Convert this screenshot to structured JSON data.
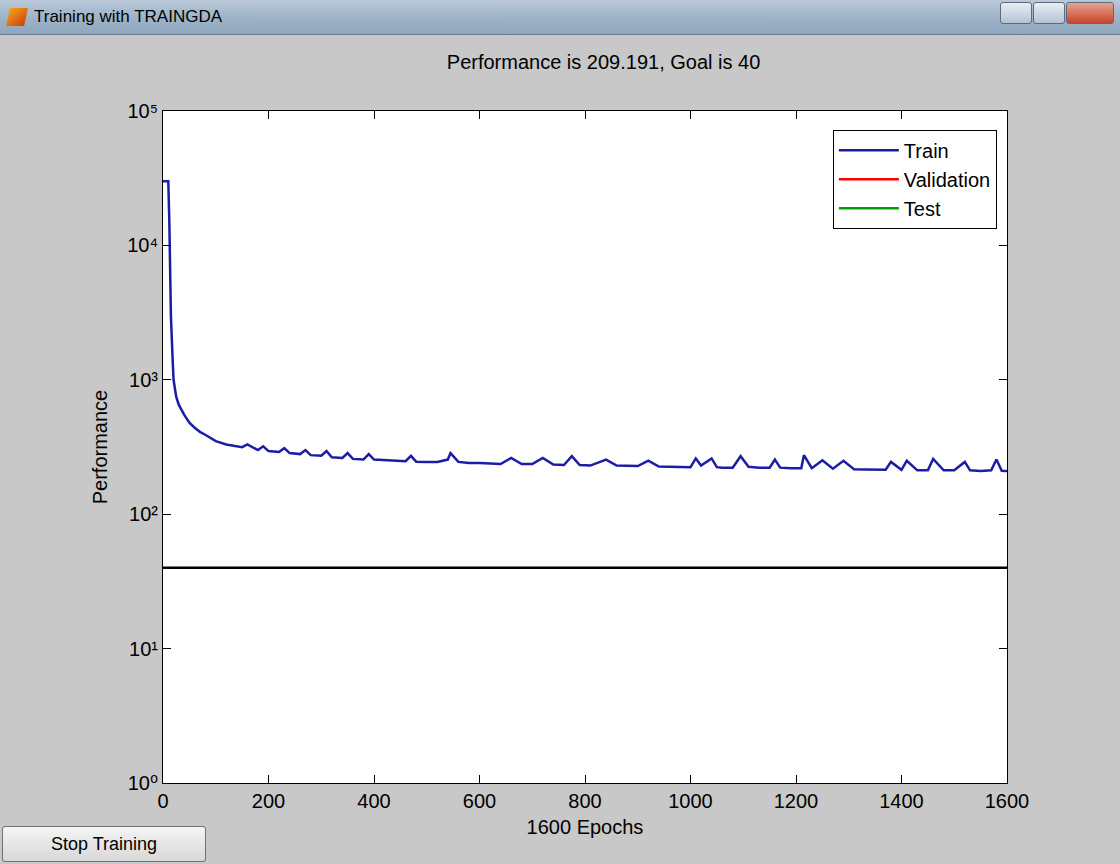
{
  "chart_data": {
    "type": "line",
    "title": "Performance is 209.191, Goal is 40",
    "x_label": "1600 Epochs",
    "y_label": "Performance",
    "log": "y",
    "grid": false,
    "legend": "upper right",
    "goal": 40,
    "xlim": [
      0,
      1600
    ],
    "xticks": [
      0,
      200,
      400,
      600,
      800,
      1000,
      1200,
      1400,
      1600
    ],
    "ylim": [
      1,
      100000
    ],
    "yticks": [
      {
        "value": 1,
        "label": "10⁰"
      },
      {
        "value": 10,
        "label": "10¹"
      },
      {
        "value": 100,
        "label": "10²"
      },
      {
        "value": 1000,
        "label": "10³"
      },
      {
        "value": 10000,
        "label": "10⁴"
      },
      {
        "value": 100000,
        "label": "10⁵"
      }
    ],
    "x": [
      0,
      5,
      10,
      12,
      15,
      18,
      20,
      25,
      30,
      40,
      50,
      60,
      70,
      80,
      90,
      100,
      120,
      140,
      150,
      160,
      180,
      190,
      200,
      220,
      230,
      240,
      260,
      270,
      280,
      300,
      310,
      320,
      340,
      350,
      360,
      380,
      390,
      400,
      420,
      440,
      460,
      470,
      480,
      500,
      520,
      540,
      545,
      560,
      580,
      600,
      620,
      640,
      660,
      680,
      700,
      720,
      740,
      760,
      775,
      790,
      810,
      840,
      860,
      880,
      900,
      920,
      940,
      960,
      980,
      1000,
      1010,
      1020,
      1040,
      1050,
      1060,
      1080,
      1095,
      1110,
      1130,
      1150,
      1160,
      1170,
      1190,
      1210,
      1215,
      1230,
      1250,
      1270,
      1290,
      1310,
      1330,
      1350,
      1370,
      1380,
      1400,
      1410,
      1430,
      1450,
      1460,
      1480,
      1500,
      1520,
      1530,
      1550,
      1570,
      1580,
      1590,
      1600
    ],
    "series": [
      {
        "name": "Train",
        "color": "#1c1ca6",
        "values": [
          30000,
          30000,
          30000,
          15000,
          3000,
          1500,
          1000,
          750,
          650,
          550,
          480,
          440,
          410,
          390,
          370,
          350,
          330,
          320,
          315,
          330,
          300,
          320,
          295,
          290,
          310,
          285,
          280,
          300,
          275,
          272,
          295,
          265,
          262,
          285,
          258,
          255,
          280,
          255,
          252,
          250,
          248,
          272,
          246,
          245,
          245,
          255,
          285,
          245,
          240,
          240,
          238,
          236,
          262,
          236,
          236,
          262,
          234,
          232,
          270,
          232,
          230,
          255,
          230,
          228,
          228,
          250,
          226,
          225,
          224,
          224,
          260,
          230,
          260,
          224,
          222,
          222,
          270,
          225,
          222,
          222,
          255,
          222,
          220,
          220,
          275,
          220,
          252,
          218,
          250,
          216,
          215,
          215,
          214,
          245,
          214,
          250,
          212,
          212,
          258,
          212,
          212,
          245,
          212,
          210,
          212,
          255,
          210,
          209.191
        ]
      },
      {
        "name": "Validation",
        "color": "#ff0000",
        "values": [
          null,
          null,
          null,
          null,
          null,
          null,
          null,
          null,
          null,
          null,
          null,
          null,
          null,
          null,
          null,
          null,
          null,
          null,
          null,
          null,
          null,
          null,
          null,
          null,
          null,
          null,
          null,
          null,
          null,
          null,
          null,
          null,
          null,
          null,
          null,
          null,
          null,
          null,
          null,
          null,
          null,
          null,
          null,
          null,
          null,
          null,
          null,
          null,
          null,
          null,
          null,
          null,
          null,
          null,
          null,
          null,
          null,
          null,
          null,
          null,
          null,
          null,
          null,
          null,
          null,
          null,
          null,
          null,
          null,
          null,
          null,
          null,
          null,
          null,
          null,
          null,
          null,
          null,
          null,
          null,
          null,
          null,
          null,
          null,
          null,
          null,
          null,
          null,
          null,
          null,
          null,
          null,
          null,
          null,
          null,
          null,
          null,
          null,
          null,
          null,
          null,
          null,
          null,
          null,
          null,
          null,
          null,
          null
        ]
      },
      {
        "name": "Test",
        "color": "#00a000",
        "values": [
          null,
          null,
          null,
          null,
          null,
          null,
          null,
          null,
          null,
          null,
          null,
          null,
          null,
          null,
          null,
          null,
          null,
          null,
          null,
          null,
          null,
          null,
          null,
          null,
          null,
          null,
          null,
          null,
          null,
          null,
          null,
          null,
          null,
          null,
          null,
          null,
          null,
          null,
          null,
          null,
          null,
          null,
          null,
          null,
          null,
          null,
          null,
          null,
          null,
          null,
          null,
          null,
          null,
          null,
          null,
          null,
          null,
          null,
          null,
          null,
          null,
          null,
          null,
          null,
          null,
          null,
          null,
          null,
          null,
          null,
          null,
          null,
          null,
          null,
          null,
          null,
          null,
          null,
          null,
          null,
          null,
          null,
          null,
          null,
          null,
          null,
          null,
          null,
          null,
          null,
          null,
          null,
          null,
          null,
          null,
          null,
          null,
          null,
          null,
          null,
          null,
          null,
          null,
          null,
          null,
          null,
          null,
          null
        ]
      }
    ]
  },
  "window": {
    "title": "Training with TRAINGDA",
    "button": "Stop Training"
  }
}
